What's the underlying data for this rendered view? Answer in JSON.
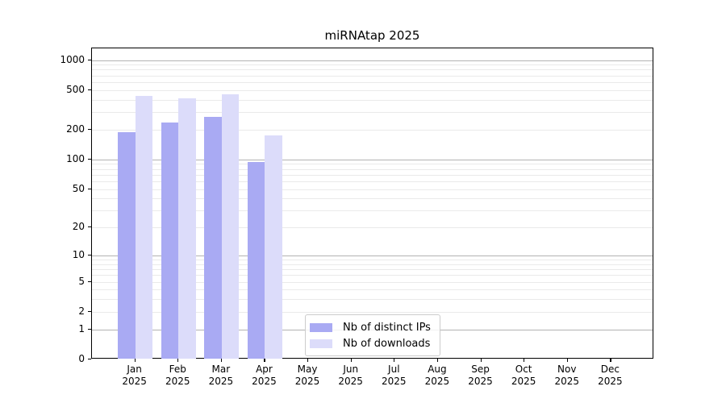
{
  "chart_data": {
    "type": "bar",
    "title": "miRNAtap 2025",
    "x_year": "2025",
    "categories": [
      "Jan",
      "Feb",
      "Mar",
      "Apr",
      "May",
      "Jun",
      "Jul",
      "Aug",
      "Sep",
      "Oct",
      "Nov",
      "Dec"
    ],
    "series": [
      {
        "name": "Nb of distinct IPs",
        "color": "#a9aaf3",
        "values": [
          190,
          235,
          270,
          95,
          null,
          null,
          null,
          null,
          null,
          null,
          null,
          null
        ]
      },
      {
        "name": "Nb of downloads",
        "color": "#dcdcfa",
        "values": [
          435,
          415,
          455,
          175,
          null,
          null,
          null,
          null,
          null,
          null,
          null,
          null
        ]
      }
    ],
    "y_ticks": [
      0,
      1,
      2,
      5,
      10,
      20,
      50,
      100,
      200,
      500,
      1000
    ],
    "ylim": [
      0,
      1310
    ],
    "scale": "log1p",
    "xlabel": "",
    "ylabel": "",
    "grid": "horizontal",
    "legend_position": "inside-bottom-center",
    "colors": {
      "major_grid": "#b2b2b2",
      "minor_grid": "#eaeaea",
      "axis": "#000000",
      "legend_border": "#cccccc"
    }
  }
}
